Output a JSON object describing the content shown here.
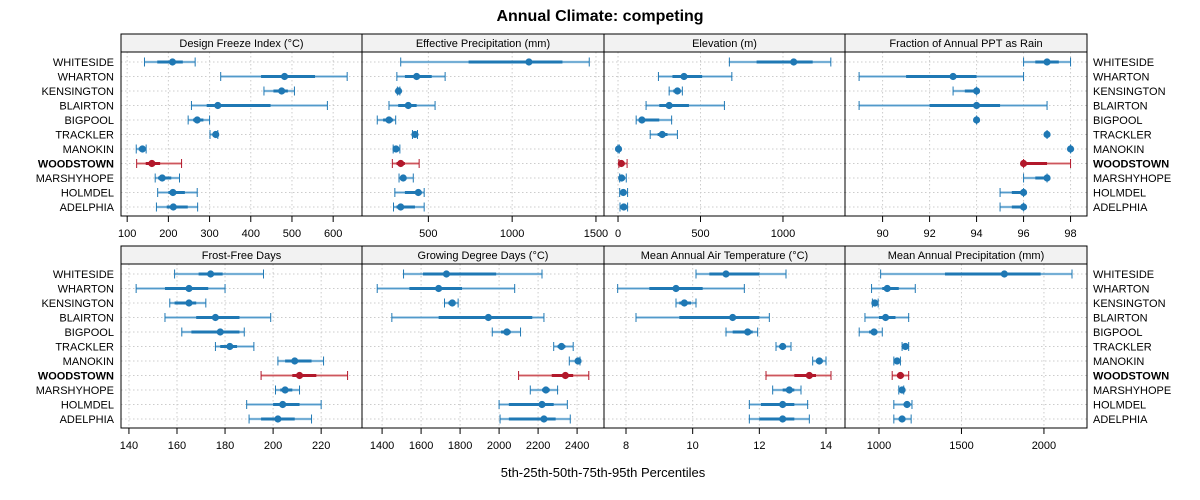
{
  "chart_data": {
    "type": "dot-interval (percentile ranges) small multiples",
    "title": "Annual Climate: competing",
    "xlabel": "5th-25th-50th-75th-95th Percentiles",
    "highlight_row": "WOODSTOWN",
    "colors": {
      "default": "#1f78b4",
      "default_light": "#74b0d8",
      "highlight": "#b2182b",
      "highlight_light": "#e08080",
      "strip_bg": "#f2f2f2",
      "grid": "#cccccc"
    },
    "rows": [
      "WHITESIDE",
      "WHARTON",
      "KENSINGTON",
      "BLAIRTON",
      "BIGPOOL",
      "TRACKLER",
      "MANOKIN",
      "WOODSTOWN",
      "MARSHYHOPE",
      "HOLMDEL",
      "ADELPHIA"
    ],
    "percentile_keys": [
      "p5",
      "p25",
      "p50",
      "p75",
      "p95"
    ],
    "panels": [
      {
        "title": "Design Freeze Index (°C)",
        "xlim": [
          85,
          670
        ],
        "ticks": [
          100,
          200,
          300,
          400,
          500,
          600
        ],
        "tick_side": "top-row",
        "values": [
          [
            142,
            173,
            210,
            235,
            265
          ],
          [
            327,
            425,
            482,
            556,
            634
          ],
          [
            432,
            455,
            475,
            490,
            506
          ],
          [
            256,
            293,
            320,
            448,
            586
          ],
          [
            248,
            260,
            270,
            285,
            300
          ],
          [
            301,
            308,
            315,
            319,
            320
          ],
          [
            122,
            128,
            137,
            142,
            146
          ],
          [
            123,
            145,
            160,
            180,
            232
          ],
          [
            168,
            175,
            185,
            207,
            227
          ],
          [
            174,
            200,
            211,
            240,
            270
          ],
          [
            171,
            196,
            212,
            247,
            271
          ]
        ]
      },
      {
        "title": "Effective Precipitation (mm)",
        "xlim": [
          104,
          1548
        ],
        "ticks": [
          500,
          1000,
          1500
        ],
        "values": [
          [
            335,
            740,
            1100,
            1300,
            1460
          ],
          [
            312,
            360,
            430,
            520,
            600
          ],
          [
            315,
            318,
            322,
            326,
            330
          ],
          [
            265,
            320,
            380,
            430,
            540
          ],
          [
            195,
            230,
            265,
            290,
            305
          ],
          [
            405,
            412,
            420,
            428,
            435
          ],
          [
            290,
            300,
            307,
            315,
            330
          ],
          [
            285,
            310,
            335,
            360,
            445
          ],
          [
            325,
            340,
            350,
            365,
            410
          ],
          [
            300,
            360,
            440,
            460,
            475
          ],
          [
            292,
            310,
            335,
            420,
            475
          ]
        ]
      },
      {
        "title": "Elevation (m)",
        "xlim": [
          -85,
          1376
        ],
        "ticks": [
          0,
          500,
          1000
        ],
        "values": [
          [
            675,
            840,
            1065,
            1180,
            1290
          ],
          [
            245,
            330,
            400,
            510,
            690
          ],
          [
            310,
            335,
            360,
            375,
            390
          ],
          [
            170,
            250,
            310,
            430,
            645
          ],
          [
            110,
            125,
            145,
            250,
            325
          ],
          [
            195,
            240,
            268,
            300,
            360
          ],
          [
            0,
            1,
            3,
            5,
            8
          ],
          [
            5,
            10,
            20,
            40,
            55
          ],
          [
            10,
            15,
            22,
            35,
            50
          ],
          [
            10,
            20,
            32,
            45,
            58
          ],
          [
            12,
            22,
            35,
            50,
            58
          ]
        ]
      },
      {
        "title": "Fraction of Annual PPT as Rain",
        "xlim": [
          88.4,
          98.7
        ],
        "ticks": [
          90,
          92,
          94,
          96,
          98
        ],
        "values": [
          [
            96,
            96.5,
            97,
            97.5,
            98
          ],
          [
            89,
            91,
            93,
            94,
            96
          ],
          [
            93,
            93.5,
            94,
            94,
            94
          ],
          [
            89,
            92,
            94,
            95,
            97
          ],
          [
            94,
            94,
            94,
            94,
            94
          ],
          [
            97,
            97,
            97,
            97,
            97
          ],
          [
            98,
            98,
            98,
            98,
            98
          ],
          [
            96,
            96,
            96,
            97,
            98
          ],
          [
            96,
            96.5,
            97,
            97,
            97
          ],
          [
            95,
            95.5,
            96,
            96,
            96
          ],
          [
            95,
            95.5,
            96,
            96,
            96
          ]
        ]
      },
      {
        "title": "Frost-Free Days",
        "xlim": [
          136.7,
          237
        ],
        "ticks": [
          140,
          160,
          180,
          200,
          220
        ],
        "values": [
          [
            159,
            169,
            174,
            179,
            196
          ],
          [
            143,
            155,
            165,
            173,
            180
          ],
          [
            157,
            159,
            165,
            168,
            172
          ],
          [
            155,
            168,
            176,
            186,
            199
          ],
          [
            162,
            166,
            178,
            186,
            188
          ],
          [
            176,
            178,
            182,
            185,
            192
          ],
          [
            202,
            205,
            209,
            216,
            221
          ],
          [
            195,
            208,
            211,
            218,
            231
          ],
          [
            201,
            203,
            205,
            208,
            211
          ],
          [
            189,
            200,
            204,
            211,
            220
          ],
          [
            190,
            195,
            202,
            209,
            216
          ]
        ]
      },
      {
        "title": "Growing Degree Days (°C)",
        "xlim": [
          1297,
          2538
        ],
        "ticks": [
          1400,
          1600,
          1800,
          2000,
          2200,
          2400
        ],
        "values": [
          [
            1510,
            1610,
            1730,
            1985,
            2220
          ],
          [
            1375,
            1540,
            1690,
            1810,
            2080
          ],
          [
            1720,
            1740,
            1760,
            1775,
            1790
          ],
          [
            1450,
            1690,
            1945,
            2170,
            2230
          ],
          [
            1965,
            2010,
            2040,
            2060,
            2110
          ],
          [
            2280,
            2300,
            2320,
            2340,
            2380
          ],
          [
            2360,
            2390,
            2405,
            2410,
            2415
          ],
          [
            2100,
            2270,
            2340,
            2380,
            2460
          ],
          [
            2160,
            2220,
            2240,
            2260,
            2300
          ],
          [
            2000,
            2050,
            2220,
            2280,
            2350
          ],
          [
            2005,
            2050,
            2230,
            2290,
            2365
          ]
        ]
      },
      {
        "title": "Mean Annual Air Temperature (°C)",
        "xlim": [
          7.34,
          14.57
        ],
        "ticks": [
          8,
          10,
          12,
          14
        ],
        "values": [
          [
            10.1,
            10.5,
            11.0,
            12.0,
            12.8
          ],
          [
            7.75,
            8.7,
            9.5,
            10.3,
            11.55
          ],
          [
            9.5,
            9.6,
            9.75,
            9.95,
            10.1
          ],
          [
            8.3,
            9.6,
            11.2,
            12.0,
            12.3
          ],
          [
            11.0,
            11.2,
            11.65,
            11.8,
            11.95
          ],
          [
            12.5,
            12.6,
            12.7,
            12.8,
            12.95
          ],
          [
            13.6,
            13.7,
            13.8,
            13.9,
            14.0
          ],
          [
            12.2,
            13.05,
            13.5,
            13.7,
            14.15
          ],
          [
            12.4,
            12.7,
            12.9,
            13.05,
            13.25
          ],
          [
            11.7,
            12.05,
            12.7,
            13.05,
            13.45
          ],
          [
            11.7,
            12.0,
            12.7,
            13.05,
            13.5
          ]
        ]
      },
      {
        "title": "Mean Annual Precipitation (mm)",
        "xlim": [
          794,
          2261
        ],
        "ticks": [
          1000,
          1500,
          2000
        ],
        "values": [
          [
            1010,
            1400,
            1760,
            1980,
            2170
          ],
          [
            955,
            1020,
            1050,
            1120,
            1220
          ],
          [
            960,
            970,
            975,
            985,
            995
          ],
          [
            915,
            1000,
            1040,
            1100,
            1180
          ],
          [
            880,
            940,
            970,
            990,
            1020
          ],
          [
            1140,
            1150,
            1160,
            1170,
            1180
          ],
          [
            1090,
            1100,
            1110,
            1120,
            1130
          ],
          [
            1080,
            1110,
            1130,
            1150,
            1180
          ],
          [
            1120,
            1130,
            1140,
            1145,
            1150
          ],
          [
            1090,
            1150,
            1170,
            1190,
            1200
          ],
          [
            1090,
            1120,
            1140,
            1160,
            1195
          ]
        ]
      }
    ]
  }
}
